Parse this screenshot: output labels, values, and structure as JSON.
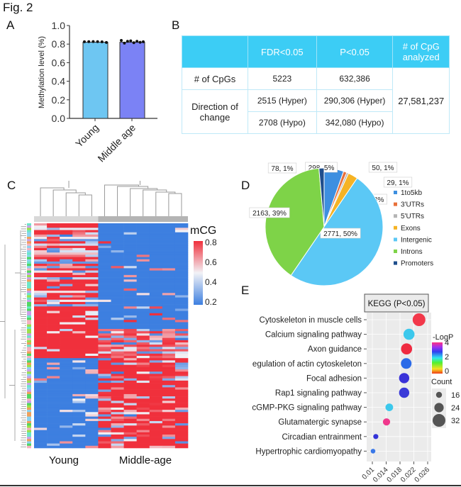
{
  "figure_title": "Fig. 2",
  "panel_labels": {
    "a": "A",
    "b": "B",
    "c": "C",
    "d": "D",
    "e": "E"
  },
  "chart_data": [
    {
      "panel": "A",
      "type": "bar",
      "ylabel": "Methylation level (%)",
      "ylim": [
        0,
        1.0
      ],
      "yticks": [
        "0.0",
        "0.2",
        "0.4",
        "0.6",
        "0.8",
        "1.0"
      ],
      "categories": [
        "Young",
        "Middle age"
      ],
      "values": [
        0.82,
        0.82
      ],
      "colors": [
        "#6ec6f2",
        "#7b82f5"
      ],
      "points": [
        [
          0.825,
          0.826,
          0.827,
          0.826,
          0.824,
          0.818
        ],
        [
          0.84,
          0.81,
          0.83,
          0.835,
          0.815,
          0.83,
          0.82,
          0.825
        ]
      ]
    },
    {
      "panel": "B",
      "type": "table",
      "header": [
        "",
        "FDR<0.05",
        "P<0.05",
        "# of CpG analyzed"
      ],
      "rows": {
        "cpgs": {
          "label": "# of CpGs",
          "fdr": "5223",
          "p": "632,386"
        },
        "direction_label": "Direction of change",
        "hyper": {
          "fdr": "2515 (Hyper)",
          "p": "290,306 (Hyper)"
        },
        "hypo": {
          "fdr": "2708 (Hypo)",
          "p": "342,080 (Hypo)"
        },
        "analyzed": "27,581,237"
      },
      "header_color": "#3ccdf5"
    },
    {
      "panel": "C",
      "type": "heatmap",
      "column_groups": [
        {
          "label": "Young",
          "columns": 5
        },
        {
          "label": "Middle-age",
          "columns": 7
        }
      ],
      "colorbar": {
        "title": "mCG",
        "ticks": [
          "0.8",
          "0.6",
          "0.4",
          "0.2"
        ],
        "range": [
          0.2,
          0.8
        ],
        "low": "#3d7fe0",
        "mid": "#f2f2f6",
        "high": "#f0303c"
      }
    },
    {
      "panel": "D",
      "type": "pie",
      "slices": [
        {
          "name": "1to5kb",
          "value": 298,
          "label": "298, 5%",
          "color": "#3d8fe0"
        },
        {
          "name": "3'UTRs",
          "value": 50,
          "label": "50, 1%",
          "color": "#e8703a"
        },
        {
          "name": "5'UTRs",
          "value": 29,
          "label": "29, 1%",
          "color": "#b5b5b5"
        },
        {
          "name": "Exons",
          "value": 149,
          "label": "149, 3%",
          "color": "#f5b324"
        },
        {
          "name": "Intergenic",
          "value": 2771,
          "label": "2771, 50%",
          "color": "#5bc8f5"
        },
        {
          "name": "Introns",
          "value": 2163,
          "label": "2163, 39%",
          "color": "#7ed348"
        },
        {
          "name": "Promoters",
          "value": 78,
          "label": "78, 1%",
          "color": "#1f4e8c"
        }
      ],
      "legend": "right"
    },
    {
      "panel": "E",
      "type": "scatter",
      "title": "KEGG (P<0.05)",
      "xlim": [
        0.01,
        0.026
      ],
      "xticks": [
        "0.01",
        "0.014",
        "0.018",
        "0.022",
        "0.026"
      ],
      "points": [
        {
          "term": "Cytoskeleton in muscle cells",
          "x": 0.0235,
          "count": 32,
          "color": "#f2384a"
        },
        {
          "term": "Calcium signaling pathway",
          "x": 0.0206,
          "count": 28,
          "color": "#3cc8ec"
        },
        {
          "term": "Axon guidance",
          "x": 0.0199,
          "count": 28,
          "color": "#ef2a40"
        },
        {
          "term": "egulation of actin cytoskeleton",
          "x": 0.0198,
          "count": 27,
          "color": "#2a6ae8"
        },
        {
          "term": "Focal adhesion",
          "x": 0.0192,
          "count": 26,
          "color": "#3a32d8"
        },
        {
          "term": "Rap1 signaling pathway",
          "x": 0.0192,
          "count": 26,
          "color": "#3a3ad8"
        },
        {
          "term": "cGMP-PKG signaling pathway",
          "x": 0.0149,
          "count": 20,
          "color": "#3cc8ec"
        },
        {
          "term": "Glutamatergic synapse",
          "x": 0.0141,
          "count": 19,
          "color": "#f0388c"
        },
        {
          "term": "Circadian entrainment",
          "x": 0.011,
          "count": 14,
          "color": "#3434d8"
        },
        {
          "term": "Hypertrophic cardiomyopathy",
          "x": 0.0102,
          "count": 13,
          "color": "#3a78e8"
        }
      ],
      "color_legend": {
        "title": "-LogP",
        "ticks": [
          "4",
          "2",
          "0"
        ],
        "range": [
          0,
          4
        ]
      },
      "size_legend": {
        "title": "Count",
        "values": [
          16,
          24,
          32
        ]
      },
      "panel_bg": "#ebebeb"
    }
  ]
}
